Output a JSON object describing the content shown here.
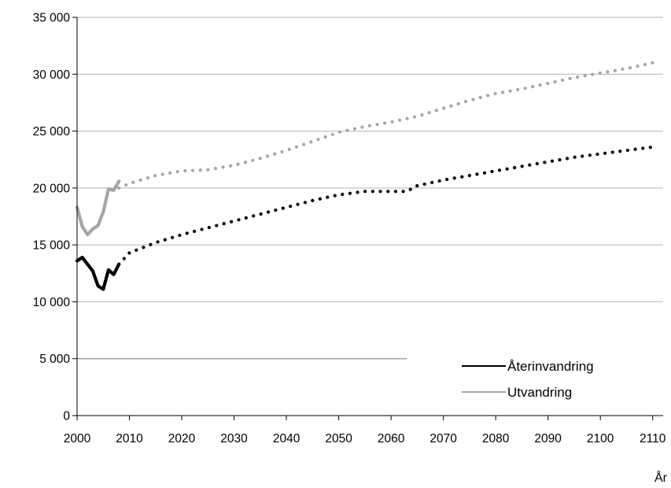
{
  "chart_data": {
    "type": "line",
    "title": "",
    "xlabel": "År",
    "ylabel": "",
    "xlim": [
      2000,
      2112
    ],
    "ylim": [
      0,
      35000
    ],
    "x_ticks": [
      2000,
      2010,
      2020,
      2030,
      2040,
      2050,
      2060,
      2070,
      2080,
      2090,
      2100,
      2110
    ],
    "y_ticks": [
      0,
      5000,
      10000,
      15000,
      20000,
      25000,
      30000,
      35000
    ],
    "y_tick_labels": [
      "0",
      "5 000",
      "10 000",
      "15 000",
      "20 000",
      "25 000",
      "30 000",
      "35 000"
    ],
    "grid": "horizontal",
    "legend_position": "bottom-right",
    "series": [
      {
        "name": "Återinvandring",
        "color": "#000000",
        "observed": {
          "x": [
            2000,
            2001,
            2002,
            2003,
            2004,
            2005,
            2006,
            2007,
            2008
          ],
          "y": [
            13600,
            13900,
            13300,
            12700,
            11400,
            11100,
            12800,
            12400,
            13300
          ]
        },
        "projected": {
          "x": [
            2008,
            2010,
            2015,
            2020,
            2025,
            2030,
            2035,
            2040,
            2045,
            2050,
            2055,
            2060,
            2063,
            2065,
            2070,
            2075,
            2080,
            2085,
            2090,
            2095,
            2100,
            2105,
            2110
          ],
          "y": [
            13300,
            14300,
            15200,
            15900,
            16500,
            17100,
            17700,
            18300,
            18900,
            19400,
            19700,
            19700,
            19700,
            20200,
            20700,
            21100,
            21500,
            21900,
            22300,
            22700,
            23000,
            23300,
            23600
          ]
        }
      },
      {
        "name": "Utvandring",
        "color": "#a6a6a6",
        "observed": {
          "x": [
            2000,
            2001,
            2002,
            2003,
            2004,
            2005,
            2006,
            2007,
            2008
          ],
          "y": [
            18300,
            16600,
            15900,
            16400,
            16700,
            17900,
            19900,
            19800,
            20600
          ]
        },
        "projected": {
          "x": [
            2008,
            2010,
            2015,
            2020,
            2025,
            2030,
            2035,
            2040,
            2045,
            2050,
            2055,
            2060,
            2065,
            2070,
            2075,
            2080,
            2085,
            2090,
            2095,
            2100,
            2105,
            2110
          ],
          "y": [
            20000,
            20400,
            21100,
            21500,
            21600,
            22000,
            22600,
            23300,
            24100,
            24900,
            25400,
            25800,
            26300,
            27000,
            27700,
            28300,
            28700,
            29200,
            29700,
            30100,
            30500,
            31000
          ]
        }
      }
    ],
    "reference_line": {
      "y": 5000,
      "x_from": 2000,
      "x_to": 2063,
      "color": "#a6a6a6"
    }
  }
}
